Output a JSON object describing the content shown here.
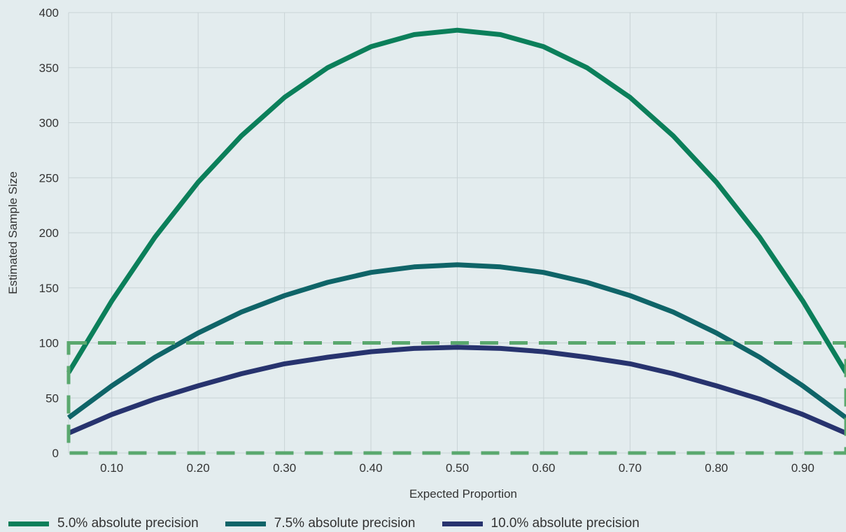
{
  "chart_data": {
    "type": "line",
    "xlabel": "Expected Proportion",
    "ylabel": "Estimated Sample Size",
    "xlim": [
      0.05,
      0.95
    ],
    "ylim": [
      0,
      400
    ],
    "x_ticks": [
      "0.10",
      "0.20",
      "0.30",
      "0.40",
      "0.50",
      "0.60",
      "0.70",
      "0.80",
      "0.90"
    ],
    "y_ticks": [
      "0",
      "50",
      "100",
      "150",
      "200",
      "250",
      "300",
      "350",
      "400"
    ],
    "grid": true,
    "legend_position": "bottom",
    "x": [
      0.05,
      0.1,
      0.15,
      0.2,
      0.25,
      0.3,
      0.35,
      0.4,
      0.45,
      0.5,
      0.55,
      0.6,
      0.65,
      0.7,
      0.75,
      0.8,
      0.85,
      0.9,
      0.95
    ],
    "series": [
      {
        "name": "5.0% absolute precision",
        "color": "#0b7f5a",
        "values": [
          73,
          138,
          196,
          246,
          288,
          323,
          350,
          369,
          380,
          384,
          380,
          369,
          350,
          323,
          288,
          246,
          196,
          138,
          73
        ]
      },
      {
        "name": "7.5% absolute precision",
        "color": "#0f6468",
        "values": [
          32,
          61,
          87,
          109,
          128,
          143,
          155,
          164,
          169,
          171,
          169,
          164,
          155,
          143,
          128,
          109,
          87,
          61,
          32
        ]
      },
      {
        "name": "10.0% absolute precision",
        "color": "#27336e",
        "values": [
          18,
          35,
          49,
          61,
          72,
          81,
          87,
          92,
          95,
          96,
          95,
          92,
          87,
          81,
          72,
          61,
          49,
          35,
          18
        ]
      }
    ],
    "highlight_box": {
      "x_range": [
        0.05,
        0.95
      ],
      "y_range": [
        0,
        100
      ],
      "color": "#5aa86e",
      "style": "dashed"
    }
  }
}
